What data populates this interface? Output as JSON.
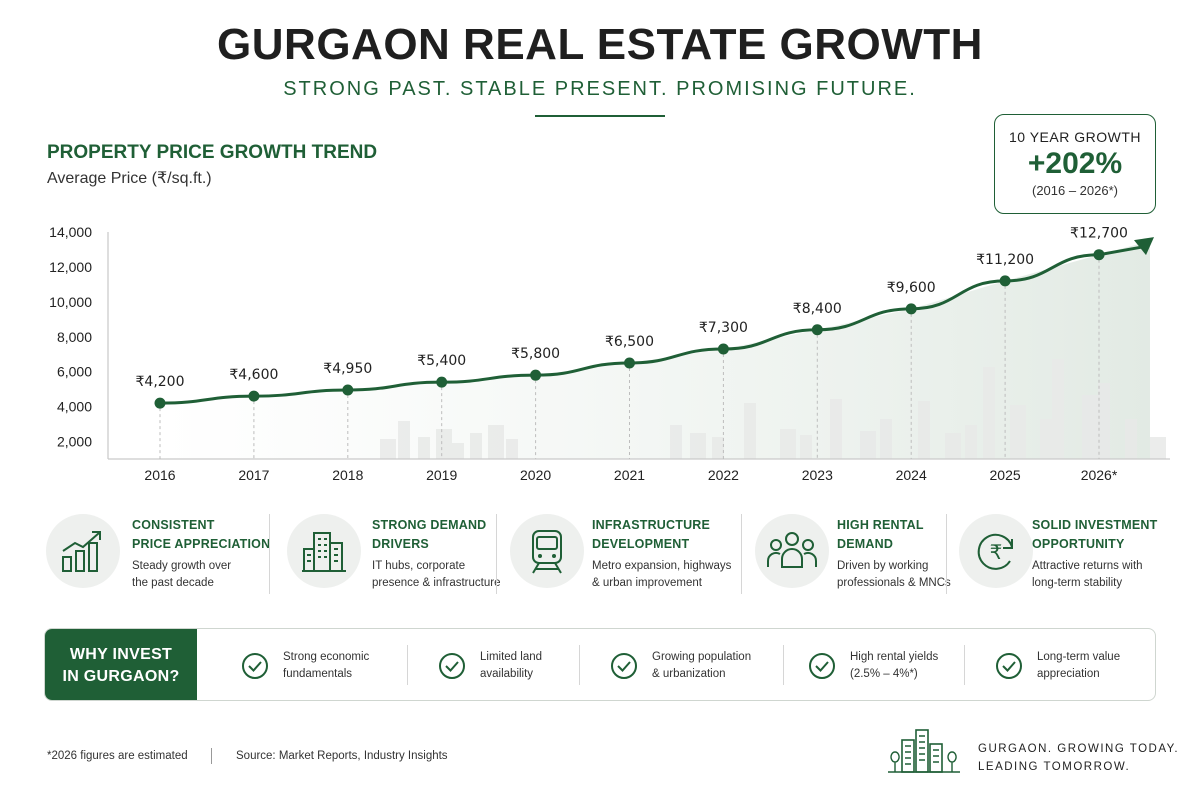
{
  "header": {
    "title": "GURGAON REAL ESTATE GROWTH",
    "subtitle": "STRONG PAST. STABLE PRESENT. PROMISING FUTURE."
  },
  "chart_data": {
    "type": "line",
    "title": "PROPERTY PRICE GROWTH TREND",
    "ylabel": "Average Price (₹/sq.ft.)",
    "xlabel": "",
    "categories": [
      "2016",
      "2017",
      "2018",
      "2019",
      "2020",
      "2021",
      "2022",
      "2023",
      "2024",
      "2025",
      "2026*"
    ],
    "values": [
      4200,
      4600,
      4950,
      5400,
      5800,
      6500,
      7300,
      8400,
      9600,
      11200,
      12700
    ],
    "data_labels": [
      "₹4,200",
      "₹4,600",
      "₹4,950",
      "₹5,400",
      "₹5,800",
      "₹6,500",
      "₹7,300",
      "₹8,400",
      "₹9,600",
      "₹11,200",
      "₹12,700"
    ],
    "y_ticks": [
      "14,000",
      "12,000",
      "10,000",
      "8,000",
      "6,000",
      "4,000",
      "2,000"
    ],
    "y_tick_values": [
      14000,
      12000,
      10000,
      8000,
      6000,
      4000,
      2000
    ],
    "ylim": [
      1000,
      14000
    ],
    "grid": false,
    "color": "#1f5f36"
  },
  "growth_box": {
    "label": "10 YEAR GROWTH",
    "value": "+202%",
    "range": "(2016 – 2026*)"
  },
  "features": [
    {
      "title_line1": "CONSISTENT",
      "title_line2": "PRICE APPRECIATION",
      "desc_line1": "Steady growth over",
      "desc_line2": "the past decade",
      "icon": "bar-growth-icon"
    },
    {
      "title_line1": "STRONG DEMAND",
      "title_line2": "DRIVERS",
      "desc_line1": "IT hubs, corporate",
      "desc_line2": "presence & infrastructure",
      "icon": "buildings-icon"
    },
    {
      "title_line1": "INFRASTRUCTURE",
      "title_line2": "DEVELOPMENT",
      "desc_line1": "Metro expansion, highways",
      "desc_line2": "& urban improvement",
      "icon": "metro-train-icon"
    },
    {
      "title_line1": "HIGH RENTAL",
      "title_line2": "DEMAND",
      "desc_line1": "Driven by working",
      "desc_line2": "professionals & MNCs",
      "icon": "people-icon"
    },
    {
      "title_line1": "SOLID INVESTMENT",
      "title_line2": "OPPORTUNITY",
      "desc_line1": "Attractive returns with",
      "desc_line2": "long-term stability",
      "icon": "rupee-cycle-icon"
    }
  ],
  "why_invest": {
    "label_line1": "WHY INVEST",
    "label_line2": "IN GURGAON?",
    "items": [
      {
        "line1": "Strong economic",
        "line2": "fundamentals"
      },
      {
        "line1": "Limited land",
        "line2": "availability"
      },
      {
        "line1": "Growing population",
        "line2": "& urbanization"
      },
      {
        "line1": "High rental yields",
        "line2": "(2.5% – 4%*)"
      },
      {
        "line1": "Long-term value",
        "line2": "appreciation"
      }
    ]
  },
  "footer": {
    "footnote": "*2026 figures are estimated",
    "source": "Source: Market Reports, Industry Insights",
    "tagline_line1": "GURGAON. GROWING TODAY.",
    "tagline_line2": "LEADING TOMORROW."
  },
  "colors": {
    "brand": "#1f5f36",
    "skyline": "#e7e9e7"
  }
}
